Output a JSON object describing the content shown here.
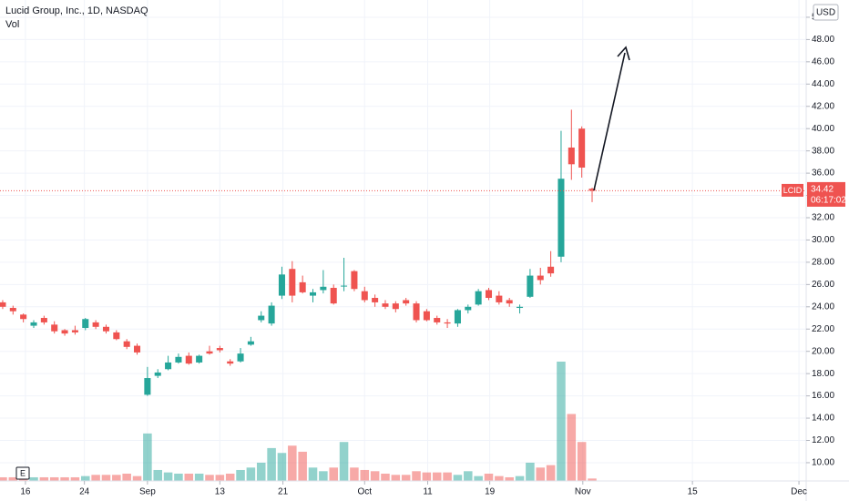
{
  "chart_data": {
    "type": "candlestick",
    "title": "Lucid Group, Inc., 1D, NASDAQ",
    "volume_label": "Vol",
    "currency": "USD",
    "symbol": "LCID",
    "last_price": 34.42,
    "countdown": "06:17:02",
    "event_marker": "E",
    "up_color": "#26a69a",
    "down_color": "#ef5350",
    "grid": true,
    "xlim": [
      -0.26,
      77.7
    ],
    "xticks": [
      {
        "value": 2.2,
        "label": "16"
      },
      {
        "value": 7.9,
        "label": "24"
      },
      {
        "value": 14,
        "label": "Sep"
      },
      {
        "value": 21,
        "label": "13"
      },
      {
        "value": 27.1,
        "label": "21"
      },
      {
        "value": 35,
        "label": "Oct"
      },
      {
        "value": 41.1,
        "label": "11"
      },
      {
        "value": 47.1,
        "label": "19"
      },
      {
        "value": 56.1,
        "label": "Nov"
      },
      {
        "value": 66.7,
        "label": "15"
      },
      {
        "value": 77,
        "label": "Dec"
      }
    ],
    "ylim": [
      8.36,
      51.55
    ],
    "yticks": [
      {
        "value": 10,
        "label": "10.00"
      },
      {
        "value": 12,
        "label": "12.00"
      },
      {
        "value": 14,
        "label": "14.00"
      },
      {
        "value": 16,
        "label": "16.00"
      },
      {
        "value": 18,
        "label": "18.00"
      },
      {
        "value": 20,
        "label": "20.00"
      },
      {
        "value": 22,
        "label": "22.00"
      },
      {
        "value": 24,
        "label": "24.00"
      },
      {
        "value": 26,
        "label": "26.00"
      },
      {
        "value": 28,
        "label": "28.00"
      },
      {
        "value": 30,
        "label": "30.00"
      },
      {
        "value": 32,
        "label": "32.00"
      },
      {
        "value": 34,
        "label": "34.00"
      },
      {
        "value": 36,
        "label": "36.00"
      },
      {
        "value": 38,
        "label": "38.00"
      },
      {
        "value": 40,
        "label": "40.00"
      },
      {
        "value": 42,
        "label": "42.00"
      },
      {
        "value": 44,
        "label": "44.00"
      },
      {
        "value": 46,
        "label": "46.00"
      },
      {
        "value": 48,
        "label": "48.00"
      },
      {
        "value": 50,
        "label": "50.00"
      }
    ],
    "open": [
      24.4,
      23.9,
      23.3,
      22.3,
      23.0,
      22.4,
      21.9,
      21.9,
      22.1,
      22.6,
      22.2,
      21.7,
      20.9,
      20.5,
      16.1,
      17.8,
      18.4,
      19.0,
      19.6,
      19.0,
      20.0,
      20.3,
      19.1,
      19.1,
      20.6,
      22.8,
      22.5,
      25.0,
      27.4,
      26.2,
      25.0,
      25.5,
      25.7,
      25.9,
      27.2,
      25.4,
      24.8,
      24.3,
      24.3,
      24.6,
      24.3,
      23.6,
      23.0,
      22.6,
      22.5,
      23.7,
      24.2,
      25.5,
      25.0,
      24.6,
      23.9,
      24.9,
      26.8,
      27.6,
      28.5,
      38.3,
      40.0,
      34.6
    ],
    "high": [
      24.6,
      24.1,
      23.4,
      22.8,
      23.2,
      22.7,
      22.0,
      22.3,
      23.0,
      22.8,
      22.4,
      21.9,
      21.1,
      20.7,
      18.6,
      18.4,
      19.6,
      19.8,
      19.9,
      19.7,
      20.5,
      20.5,
      19.3,
      20.3,
      21.3,
      23.6,
      24.4,
      27.6,
      28.1,
      26.8,
      25.6,
      27.3,
      26.0,
      28.4,
      27.3,
      25.8,
      25.1,
      24.6,
      24.5,
      24.8,
      24.5,
      23.8,
      23.2,
      22.9,
      23.8,
      24.2,
      25.6,
      25.7,
      25.4,
      24.8,
      24.2,
      27.4,
      27.5,
      29.0,
      39.8,
      41.7,
      40.2,
      34.7
    ],
    "low": [
      23.8,
      23.3,
      22.6,
      22.1,
      22.4,
      21.6,
      21.4,
      21.5,
      21.9,
      22.0,
      21.6,
      21.0,
      20.2,
      19.7,
      16.0,
      17.6,
      18.3,
      18.9,
      18.8,
      18.9,
      19.7,
      19.9,
      18.7,
      19.0,
      20.5,
      22.6,
      22.3,
      24.7,
      24.4,
      25.2,
      24.4,
      25.2,
      24.2,
      25.4,
      25.4,
      24.4,
      24.0,
      23.8,
      23.5,
      24.1,
      22.6,
      22.7,
      22.4,
      22.1,
      22.2,
      23.4,
      24.1,
      24.6,
      24.2,
      24.0,
      23.4,
      24.8,
      26.0,
      26.7,
      28.0,
      35.4,
      35.6,
      33.4
    ],
    "close": [
      24.0,
      23.6,
      22.9,
      22.6,
      22.6,
      21.8,
      21.6,
      21.7,
      22.9,
      22.2,
      21.8,
      21.1,
      20.4,
      19.9,
      17.6,
      18.1,
      19.0,
      19.5,
      18.9,
      19.6,
      19.8,
      20.1,
      18.9,
      19.8,
      20.9,
      23.2,
      24.1,
      26.9,
      25.0,
      25.3,
      25.3,
      25.8,
      24.3,
      25.9,
      25.6,
      24.6,
      24.4,
      24.0,
      23.8,
      24.3,
      22.8,
      22.8,
      22.6,
      22.5,
      23.7,
      24.0,
      25.4,
      24.8,
      24.4,
      24.3,
      24.0,
      26.8,
      26.4,
      27.0,
      35.5,
      36.8,
      36.5,
      34.42
    ],
    "volume": [
      3,
      3,
      3,
      3,
      3,
      3,
      3,
      3,
      4,
      5,
      5,
      5,
      6,
      4,
      39,
      9,
      7,
      6,
      6,
      6,
      5,
      5,
      6,
      9,
      11,
      15,
      27,
      23,
      29,
      24,
      11,
      8,
      11,
      32,
      11,
      9,
      8,
      6,
      5,
      5,
      8,
      7,
      7,
      7,
      5,
      8,
      4,
      6,
      4,
      3,
      4,
      15,
      11,
      13,
      98,
      55,
      32,
      2
    ]
  }
}
